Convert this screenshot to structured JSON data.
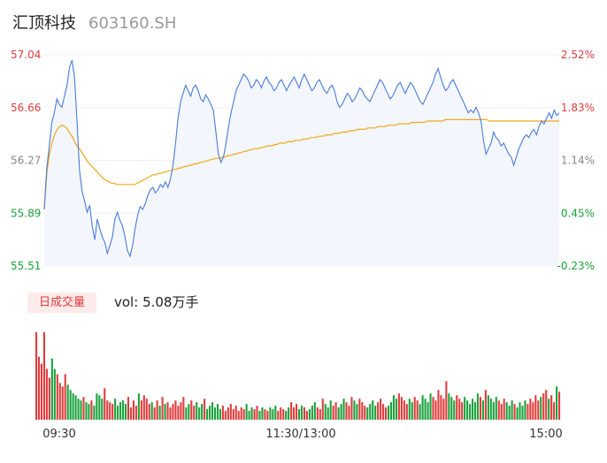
{
  "header": {
    "name": "汇顶科技",
    "code": "603160.SH"
  },
  "price_axis": {
    "left_labels": [
      "57.04",
      "56.66",
      "56.27",
      "55.89",
      "55.51"
    ],
    "right_labels": [
      "2.52%",
      "1.83%",
      "1.14%",
      "0.45%",
      "-0.23%"
    ],
    "label_colors": [
      "#e03b3b",
      "#e03b3b",
      "#888888",
      "#1aa13a",
      "#1aa13a"
    ]
  },
  "volume_panel": {
    "tab_label": "日成交量",
    "vol_label": "vol:",
    "vol_value": "5.08万手"
  },
  "time_axis": [
    "09:30",
    "11:30/13:00",
    "15:00"
  ],
  "colors": {
    "price_line": "#4a7bd8",
    "avg_line": "#f0a818",
    "area": "#f3f6fc",
    "up": "#e03b3b",
    "down": "#1aa13a"
  },
  "chart_data": [
    {
      "type": "line",
      "series": [
        {
          "name": "price",
          "values": [
            55.92,
            56.22,
            56.38,
            56.55,
            56.62,
            56.72,
            56.68,
            56.66,
            56.74,
            56.82,
            56.95,
            57.0,
            56.88,
            56.55,
            56.2,
            56.05,
            55.98,
            55.9,
            55.95,
            55.8,
            55.7,
            55.85,
            55.78,
            55.72,
            55.68,
            55.6,
            55.66,
            55.72,
            55.85,
            55.9,
            55.84,
            55.8,
            55.72,
            55.62,
            55.58,
            55.66,
            55.78,
            55.88,
            55.94,
            55.92,
            55.96,
            56.02,
            56.06,
            56.08,
            56.04,
            56.06,
            56.1,
            56.08,
            56.12,
            56.08,
            56.14,
            56.24,
            56.4,
            56.58,
            56.7,
            56.76,
            56.82,
            56.78,
            56.74,
            56.8,
            56.82,
            56.78,
            56.72,
            56.7,
            56.75,
            56.72,
            56.68,
            56.64,
            56.48,
            56.32,
            56.26,
            56.3,
            56.4,
            56.52,
            56.62,
            56.7,
            56.78,
            56.82,
            56.86,
            56.9,
            56.88,
            56.85,
            56.8,
            56.82,
            56.86,
            56.84,
            56.8,
            56.85,
            56.88,
            56.84,
            56.82,
            56.78,
            56.8,
            56.84,
            56.86,
            56.82,
            56.78,
            56.82,
            56.85,
            56.88,
            56.84,
            56.8,
            56.86,
            56.9,
            56.86,
            56.82,
            56.78,
            56.8,
            56.84,
            56.86,
            56.82,
            56.78,
            56.76,
            56.8,
            56.82,
            56.78,
            56.7,
            56.66,
            56.68,
            56.72,
            56.76,
            56.74,
            56.7,
            56.72,
            56.76,
            56.8,
            56.78,
            56.74,
            56.72,
            56.7,
            56.74,
            56.78,
            56.82,
            56.86,
            56.84,
            56.8,
            56.76,
            56.72,
            56.74,
            56.78,
            56.82,
            56.84,
            56.8,
            56.76,
            56.8,
            56.84,
            56.82,
            56.78,
            56.74,
            56.7,
            56.68,
            56.72,
            56.76,
            56.8,
            56.84,
            56.9,
            56.94,
            56.88,
            56.82,
            56.78,
            56.8,
            56.84,
            56.86,
            56.82,
            56.78,
            56.74,
            56.7,
            56.66,
            56.62,
            56.64,
            56.62,
            56.66,
            56.62,
            56.56,
            56.42,
            56.32,
            56.36,
            56.4,
            56.48,
            56.44,
            56.42,
            56.38,
            56.4,
            56.36,
            56.32,
            56.3,
            56.24,
            56.3,
            56.36,
            56.4,
            56.44,
            56.46,
            56.44,
            56.48,
            56.5,
            56.46,
            56.52,
            56.56,
            56.54,
            56.58,
            56.62,
            56.58,
            56.64,
            56.6,
            56.62
          ]
        },
        {
          "name": "average",
          "values": [
            55.92,
            56.18,
            56.32,
            56.4,
            56.46,
            56.5,
            56.52,
            56.53,
            56.52,
            56.5,
            56.47,
            56.44,
            56.4,
            56.37,
            56.35,
            56.32,
            56.29,
            56.26,
            56.24,
            56.22,
            56.2,
            56.18,
            56.16,
            56.14,
            56.13,
            56.12,
            56.11,
            56.11,
            56.1,
            56.1,
            56.1,
            56.1,
            56.1,
            56.1,
            56.1,
            56.1,
            56.11,
            56.12,
            56.13,
            56.14,
            56.15,
            56.16,
            56.17,
            56.17,
            56.18,
            56.18,
            56.19,
            56.19,
            56.2,
            56.2,
            56.21,
            56.21,
            56.22,
            56.22,
            56.23,
            56.23,
            56.24,
            56.24,
            56.25,
            56.25,
            56.26,
            56.26,
            56.27,
            56.27,
            56.28,
            56.28,
            56.29,
            56.29,
            56.29,
            56.3,
            56.3,
            56.31,
            56.31,
            56.32,
            56.32,
            56.33,
            56.33,
            56.34,
            56.34,
            56.35,
            56.35,
            56.36,
            56.36,
            56.36,
            56.37,
            56.37,
            56.38,
            56.38,
            56.38,
            56.39,
            56.39,
            56.4,
            56.4,
            56.4,
            56.41,
            56.41,
            56.41,
            56.42,
            56.42,
            56.42,
            56.43,
            56.43,
            56.43,
            56.44,
            56.44,
            56.44,
            56.45,
            56.45,
            56.45,
            56.46,
            56.46,
            56.46,
            56.47,
            56.47,
            56.47,
            56.48,
            56.48,
            56.48,
            56.49,
            56.49,
            56.49,
            56.5,
            56.5,
            56.5,
            56.5,
            56.51,
            56.51,
            56.51,
            56.51,
            56.52,
            56.52,
            56.52,
            56.52,
            56.53,
            56.53,
            56.53,
            56.53,
            56.54,
            56.54,
            56.54,
            56.54,
            56.54,
            56.55,
            56.55,
            56.55,
            56.55,
            56.55,
            56.55,
            56.56,
            56.56,
            56.56,
            56.56,
            56.56,
            56.56,
            56.56,
            56.57,
            56.57,
            56.57,
            56.57,
            56.57,
            56.57,
            56.57,
            56.57,
            56.57,
            56.57,
            56.57,
            56.57,
            56.57,
            56.57,
            56.57,
            56.57,
            56.57,
            56.56,
            56.56,
            56.56,
            56.56,
            56.56,
            56.56,
            56.56,
            56.56,
            56.56,
            56.56,
            56.56,
            56.56,
            56.56,
            56.56,
            56.56,
            56.56,
            56.56,
            56.56,
            56.56,
            56.56,
            56.56,
            56.56,
            56.56,
            56.56,
            56.56,
            56.56,
            56.56,
            56.56
          ]
        }
      ],
      "ylim": [
        55.51,
        57.04
      ],
      "ylim_pct": [
        -0.23,
        2.52
      ]
    },
    {
      "type": "bar",
      "series": [
        {
          "name": "volume",
          "values": [
            100,
            72,
            64,
            100,
            58,
            48,
            70,
            58,
            52,
            42,
            38,
            52,
            40,
            34,
            30,
            28,
            24,
            22,
            26,
            20,
            18,
            22,
            16,
            30,
            28,
            24,
            36,
            22,
            20,
            18,
            24,
            16,
            20,
            22,
            18,
            26,
            14,
            22,
            16,
            30,
            22,
            28,
            24,
            18,
            20,
            14,
            22,
            16,
            26,
            18,
            20,
            14,
            18,
            22,
            16,
            20,
            26,
            14,
            18,
            22,
            16,
            20,
            14,
            18,
            24,
            12,
            16,
            20,
            14,
            18,
            12,
            16,
            10,
            14,
            18,
            12,
            16,
            10,
            14,
            12,
            18,
            10,
            14,
            12,
            16,
            10,
            14,
            12,
            10,
            14,
            12,
            16,
            10,
            14,
            12,
            10,
            14,
            20,
            14,
            18,
            12,
            16,
            14,
            10,
            12,
            16,
            20,
            14,
            12,
            24,
            18,
            14,
            22,
            16,
            20,
            14,
            18,
            24,
            20,
            16,
            26,
            22,
            18,
            24,
            20,
            16,
            14,
            18,
            22,
            16,
            20,
            24,
            18,
            14,
            16,
            20,
            28,
            24,
            30,
            26,
            22,
            18,
            24,
            20,
            26,
            22,
            18,
            28,
            24,
            20,
            30,
            26,
            22,
            34,
            28,
            24,
            44,
            30,
            26,
            22,
            28,
            24,
            20,
            26,
            22,
            18,
            24,
            20,
            30,
            26,
            22,
            34,
            28,
            24,
            20,
            26,
            22,
            18,
            24,
            20,
            16,
            22,
            18,
            14,
            20,
            16,
            22,
            18,
            24,
            20,
            28,
            22,
            26,
            30,
            34,
            24,
            28,
            20,
            38,
            32
          ]
        }
      ]
    }
  ]
}
